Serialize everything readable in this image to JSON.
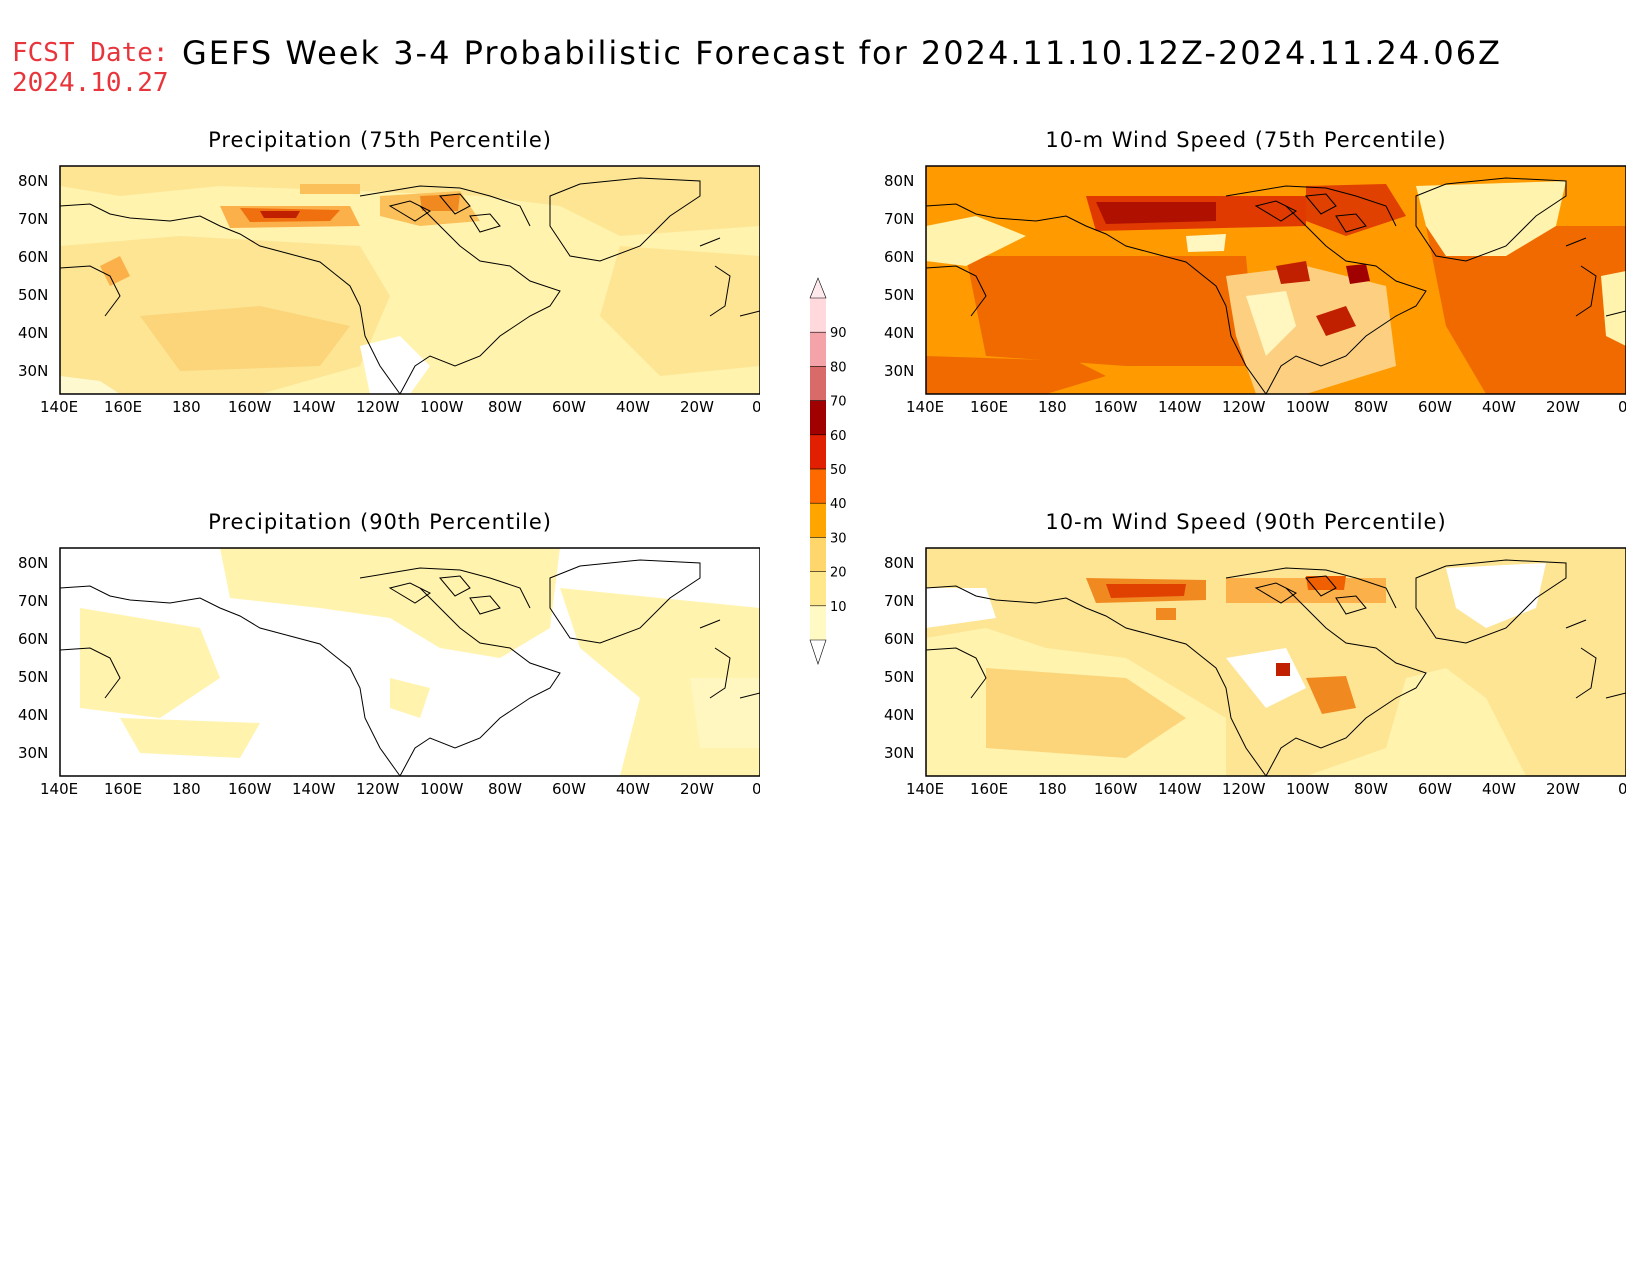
{
  "header": {
    "fcst_label": "FCST Date:",
    "fcst_date": "2024.10.27",
    "title": "GEFS Week 3-4 Probabilistic Forecast for 2024.11.10.12Z-2024.11.24.06Z"
  },
  "axes": {
    "lon_labels": [
      "140E",
      "160E",
      "180",
      "160W",
      "140W",
      "120W",
      "100W",
      "80W",
      "60W",
      "40W",
      "20W",
      "0"
    ],
    "lat_labels": [
      "80N",
      "70N",
      "60N",
      "50N",
      "40N",
      "30N"
    ]
  },
  "panels": [
    {
      "id": "precip75",
      "title": "Precipitation (75th Percentile)"
    },
    {
      "id": "wind75",
      "title": "10-m Wind Speed (75th Percentile)"
    },
    {
      "id": "precip90",
      "title": "Precipitation (90th Percentile)"
    },
    {
      "id": "wind90",
      "title": "10-m Wind Speed (90th Percentile)"
    }
  ],
  "colorbar": {
    "levels": [
      "10",
      "20",
      "30",
      "40",
      "50",
      "60",
      "70",
      "80",
      "90"
    ],
    "colors": [
      "#fff9c4",
      "#ffe88c",
      "#ffd66b",
      "#ffa500",
      "#ff6a00",
      "#e02000",
      "#a00000",
      "#d96a6a",
      "#f4a3a8",
      "#ffd9dc"
    ]
  },
  "colors": {
    "land_line": "#000000",
    "level_10": "#fff6b8",
    "level_20": "#fde08c",
    "level_30": "#fbc05a",
    "level_40": "#ff9a00",
    "level_50": "#f06000",
    "level_60": "#d01a00",
    "level_70": "#9a0000"
  }
}
